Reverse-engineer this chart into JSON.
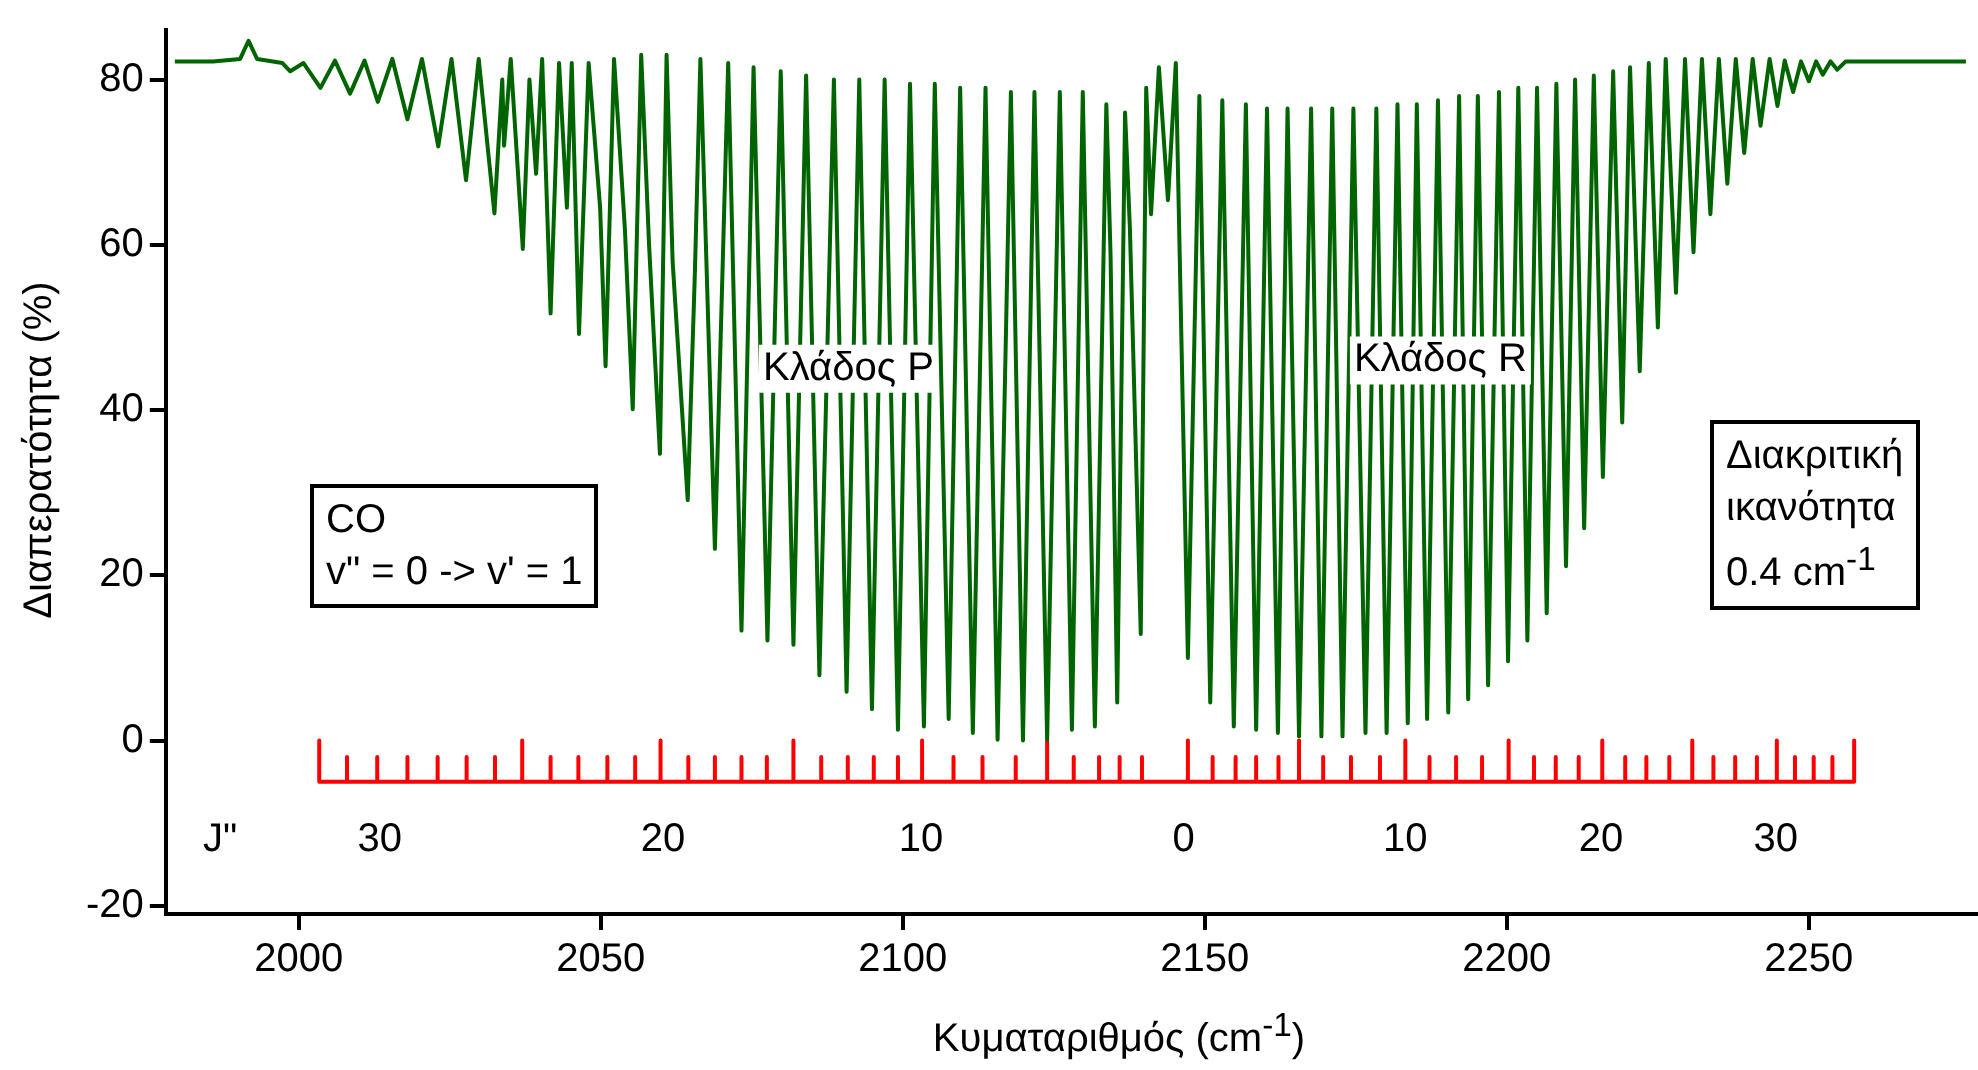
{
  "chart_data": {
    "type": "line",
    "xlabel": "Κυματαριθμός (cm$^{-1}$)",
    "ylabel": "Διαπερατότητα (%)",
    "xlim": [
      1978,
      2278
    ],
    "ylim": [
      -21,
      86
    ],
    "xticks": [
      2000,
      2050,
      2100,
      2150,
      2200,
      2250
    ],
    "yticks": [
      -20,
      0,
      20,
      40,
      60,
      80
    ],
    "grid": false,
    "legend": false,
    "marker": "none",
    "line_style": "solid",
    "series": [
      {
        "type": "line",
        "color": "#006400",
        "x": [
          1979.5,
          1985.8,
          1990.3,
          1991.7,
          1993.1,
          1997.3,
          1998.6,
          2000.8,
          2003.6,
          2006.0,
          2008.5,
          2010.9,
          2013.1,
          2015.5,
          2018.0,
          2020.4,
          2023.1,
          2025.3,
          2027.7,
          2029.8,
          2032.4,
          2033.7,
          2034.0,
          2035.1,
          2037.1,
          2038.2,
          2039.3,
          2040.3,
          2041.7,
          2043.1,
          2044.4,
          2045.2,
          2046.4,
          2048.0,
          2049.9,
          2050.8,
          2052.2,
          2054.0,
          2055.3,
          2056.7,
          2058.0,
          2059.8,
          2060.9,
          2061.9,
          2064.4,
          2065.6,
          2066.5,
          2068.9,
          2071.1,
          2073.3,
          2075.3,
          2077.6,
          2079.8,
          2081.9,
          2084.0,
          2086.2,
          2088.6,
          2090.7,
          2092.8,
          2094.9,
          2097.0,
          2099.2,
          2101.2,
          2103.5,
          2105.3,
          2107.6,
          2109.5,
          2111.6,
          2113.7,
          2115.7,
          2117.9,
          2119.9,
          2121.8,
          2123.9,
          2126.0,
          2128.0,
          2129.8,
          2131.8,
          2133.7,
          2134.4,
          2135.5,
          2136.8,
          2137.6,
          2139.4,
          2140.3,
          2141.1,
          2142.4,
          2143.9,
          2145.2,
          2147.2,
          2149.1,
          2150.9,
          2152.9,
          2154.8,
          2156.8,
          2158.5,
          2160.3,
          2162.1,
          2163.7,
          2165.6,
          2167.6,
          2169.3,
          2171.1,
          2172.8,
          2174.6,
          2176.6,
          2178.4,
          2180.1,
          2181.9,
          2183.6,
          2185.1,
          2186.8,
          2188.6,
          2190.3,
          2192.1,
          2193.6,
          2195.2,
          2196.9,
          2198.7,
          2200.2,
          2201.9,
          2203.4,
          2205.0,
          2206.6,
          2208.2,
          2209.8,
          2211.3,
          2212.8,
          2214.4,
          2215.9,
          2217.6,
          2219.1,
          2220.4,
          2222.0,
          2223.5,
          2225.0,
          2226.3,
          2228.0,
          2229.5,
          2230.9,
          2232.3,
          2233.7,
          2235.1,
          2236.5,
          2237.9,
          2239.3,
          2240.7,
          2242.0,
          2243.5,
          2244.8,
          2246.0,
          2247.4,
          2248.7,
          2250.0,
          2251.2,
          2252.3,
          2253.6,
          2254.7,
          2256.1,
          2276.0
        ],
        "values": [
          82.2,
          82.2,
          82.5,
          84.7,
          82.5,
          82,
          81,
          82,
          79.0,
          82.3,
          78.3,
          82.3,
          77.3,
          82.5,
          75.2,
          82.5,
          71.9,
          82.5,
          67.8,
          82.5,
          63.8,
          80,
          72,
          82.5,
          59.5,
          80,
          68.6,
          82.5,
          51.7,
          82,
          64.5,
          82,
          49.2,
          82,
          64.5,
          45.3,
          82.5,
          61.9,
          40.1,
          83,
          60,
          34.7,
          83,
          58,
          29.1,
          57,
          82.5,
          23.2,
          82,
          13.3,
          81.5,
          12.1,
          81,
          11.6,
          80.5,
          7.9,
          80,
          5.9,
          80,
          3.8,
          80,
          1.3,
          79.5,
          1.7,
          79.5,
          2.6,
          79,
          0.9,
          79,
          0.1,
          78.5,
          0,
          78.5,
          0.1,
          78.5,
          1.3,
          78.5,
          1.7,
          77,
          58.7,
          4.6,
          76,
          62,
          12.9,
          79,
          63.7,
          81.5,
          65.4,
          82,
          10.0,
          78,
          4.6,
          77.5,
          1.7,
          77,
          1.3,
          76.5,
          0.9,
          76.5,
          0.5,
          76.5,
          0.5,
          76.5,
          0.5,
          76.5,
          0.9,
          76.5,
          0.9,
          77,
          2.1,
          77,
          2.6,
          77.5,
          3.4,
          78,
          5.0,
          78,
          6.7,
          78.5,
          9.6,
          79,
          12.1,
          79,
          15.4,
          79.5,
          21.1,
          80,
          25.7,
          80.5,
          31.9,
          81,
          38.5,
          81.5,
          44.7,
          82,
          50.0,
          82.5,
          54.2,
          82.5,
          59.1,
          82.5,
          63.7,
          82.5,
          67.4,
          82.5,
          71.1,
          82.5,
          74.4,
          82.5,
          76.8,
          82.3,
          78.5,
          82.2,
          79.8,
          82.2,
          80.6,
          82.2,
          81.2,
          82.2,
          82.2
        ]
      },
      {
        "type": "line",
        "color": "#ff0000",
        "x": [
          2003.4,
          2003.4,
          2003.4,
          2008.0,
          2008.0,
          2008.0,
          2013.0,
          2013.0,
          2013.0,
          2018.0,
          2018.0,
          2018.0,
          2023.0,
          2023.0,
          2023.0,
          2027.8,
          2027.8,
          2027.8,
          2032.5,
          2032.5,
          2032.5,
          2037.0,
          2037.0,
          2037.0,
          2041.7,
          2041.7,
          2041.7,
          2046.3,
          2046.3,
          2046.3,
          2051.1,
          2051.1,
          2051.1,
          2055.7,
          2055.7,
          2055.7,
          2059.9,
          2059.9,
          2059.9,
          2064.5,
          2064.5,
          2064.5,
          2068.9,
          2068.9,
          2068.9,
          2073.3,
          2073.3,
          2073.3,
          2077.5,
          2077.5,
          2077.5,
          2081.9,
          2081.9,
          2081.9,
          2086.5,
          2086.5,
          2086.5,
          2090.9,
          2090.9,
          2090.9,
          2095.2,
          2095.2,
          2095.2,
          2099.2,
          2099.2,
          2099.2,
          2103.2,
          2103.2,
          2103.2,
          2108.4,
          2108.4,
          2108.4,
          2113.2,
          2113.2,
          2113.2,
          2118.7,
          2118.7,
          2118.7,
          2123.9,
          2123.9,
          2123.9,
          2128.3,
          2128.3,
          2128.3,
          2132.5,
          2132.5,
          2132.5,
          2135.9,
          2135.9,
          2135.9,
          2139.6,
          2139.6,
          2139.6,
          2147.2,
          2147.2,
          2147.2,
          2151.3,
          2151.3,
          2151.3,
          2155.1,
          2155.1,
          2155.1,
          2158.5,
          2158.5,
          2158.5,
          2162.2,
          2162.2,
          2162.2,
          2165.6,
          2165.6,
          2165.6,
          2169.6,
          2169.6,
          2169.6,
          2174.2,
          2174.2,
          2174.2,
          2179.0,
          2179.0,
          2179.0,
          2183.2,
          2183.2,
          2183.2,
          2187.2,
          2187.2,
          2187.2,
          2191.6,
          2191.6,
          2191.6,
          2195.9,
          2195.9,
          2195.9,
          2200.3,
          2200.3,
          2200.3,
          2204.5,
          2204.5,
          2204.5,
          2208.1,
          2208.1,
          2208.1,
          2211.9,
          2211.9,
          2211.9,
          2215.8,
          2215.8,
          2215.8,
          2219.6,
          2219.6,
          2219.6,
          2223.1,
          2223.1,
          2223.1,
          2226.9,
          2226.9,
          2226.9,
          2230.7,
          2230.7,
          2230.7,
          2234.2,
          2234.2,
          2234.2,
          2237.8,
          2237.8,
          2237.8,
          2241.4,
          2241.4,
          2241.4,
          2244.7,
          2244.7,
          2244.7,
          2247.7,
          2247.7,
          2247.7,
          2250.8,
          2250.8,
          2250.8,
          2253.9,
          2253.9,
          2253.9,
          2257.5,
          2257.5,
          2257.5
        ],
        "values": [
          -5,
          0,
          -5,
          -5,
          -2,
          -5,
          -5,
          -2,
          -5,
          -5,
          -2,
          -5,
          -5,
          -2,
          -5,
          -5,
          -2,
          -5,
          -5,
          -2,
          -5,
          -5,
          0,
          -5,
          -5,
          -2,
          -5,
          -5,
          -2,
          -5,
          -5,
          -2,
          -5,
          -5,
          -2,
          -5,
          -5,
          0,
          -5,
          -5,
          -2,
          -5,
          -5,
          -2,
          -5,
          -5,
          -2,
          -5,
          -5,
          -2,
          -5,
          -5,
          0,
          -5,
          -5,
          -2,
          -5,
          -5,
          -2,
          -5,
          -5,
          -2,
          -5,
          -5,
          -2,
          -5,
          -5,
          0,
          -5,
          -5,
          -2,
          -5,
          -5,
          -2,
          -5,
          -5,
          -2,
          -5,
          -5,
          0,
          -5,
          -5,
          -2,
          -5,
          -5,
          -2,
          -5,
          -5,
          -2,
          -5,
          -5,
          -2,
          -5,
          -5,
          0,
          -5,
          -5,
          -2,
          -5,
          -5,
          -2,
          -5,
          -5,
          -2,
          -5,
          -5,
          -2,
          -5,
          -5,
          0,
          -5,
          -5,
          -2,
          -5,
          -5,
          -2,
          -5,
          -5,
          -2,
          -5,
          -5,
          0,
          -5,
          -5,
          -2,
          -5,
          -5,
          -2,
          -5,
          -5,
          -2,
          -5,
          -5,
          0,
          -5,
          -5,
          -2,
          -5,
          -5,
          -2,
          -5,
          -5,
          -2,
          -5,
          -5,
          0,
          -5,
          -5,
          -2,
          -5,
          -5,
          -2,
          -5,
          -5,
          -2,
          -5,
          -5,
          0,
          -5,
          -5,
          -2,
          -5,
          -5,
          -2,
          -5,
          -5,
          -2,
          -5,
          -5,
          0,
          -5,
          -5,
          -2,
          -5,
          -5,
          -2,
          -5,
          -5,
          -2,
          -5,
          -5,
          0,
          -5
        ]
      }
    ],
    "annotations": [
      {
        "text": "Κλάδος P",
        "x": 2091,
        "y": 45
      },
      {
        "text": "Κλάδος R",
        "x": 2189,
        "y": 46
      },
      "CO\nv\" = 0 -> v' = 1",
      "Διακριτική\nικανότητα\n0.4 cm$^{-1}$",
      {
        "text": "J\"",
        "x": 1987,
        "y": -12
      },
      {
        "text": "30",
        "x": 2013.4,
        "y": -12
      },
      {
        "text": "20",
        "x": 2060.3,
        "y": -12
      },
      {
        "text": "10",
        "x": 2103,
        "y": -12
      },
      {
        "text": "0",
        "x": 2146.5,
        "y": -12
      },
      {
        "text": "10",
        "x": 2183.2,
        "y": -12
      },
      {
        "text": "20",
        "x": 2215.6,
        "y": -12
      },
      {
        "text": "30",
        "x": 2244.5,
        "y": -12
      }
    ]
  }
}
